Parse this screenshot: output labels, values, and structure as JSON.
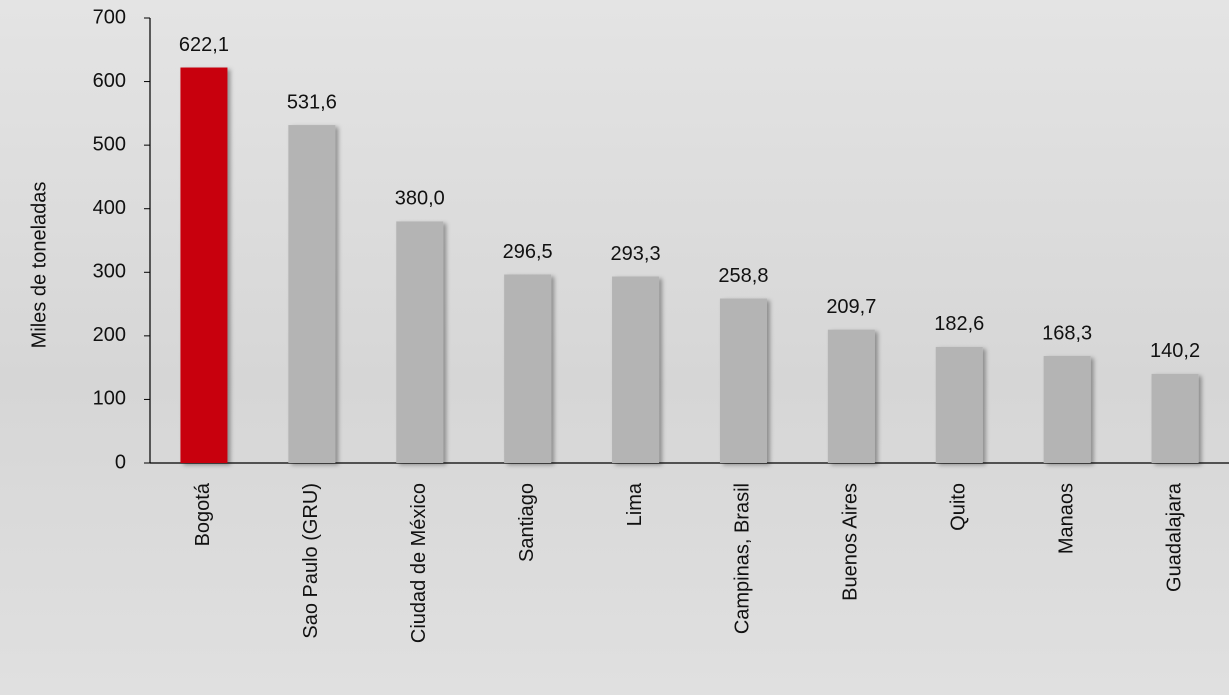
{
  "chart_data": {
    "type": "bar",
    "y_label": "Miles de toneladas",
    "categories": [
      "Bogotá",
      "Sao Paulo (GRU)",
      "Ciudad de México",
      "Santiago",
      "Lima",
      "Campinas, Brasil",
      "Buenos Aires",
      "Quito",
      "Manaos",
      "Guadalajara"
    ],
    "values": [
      622.1,
      531.6,
      380.0,
      296.5,
      293.3,
      258.8,
      209.7,
      182.6,
      168.3,
      140.2
    ],
    "value_labels": [
      "622,1",
      "531,6",
      "380,0",
      "296,5",
      "293,3",
      "258,8",
      "209,7",
      "182,6",
      "168,3",
      "140,2"
    ],
    "colors": [
      "#c8000a",
      "#b4b4b4",
      "#b4b4b4",
      "#b4b4b4",
      "#b4b4b4",
      "#b4b4b4",
      "#b4b4b4",
      "#b4b4b4",
      "#b4b4b4",
      "#b4b4b4"
    ],
    "ylim": [
      0,
      700
    ],
    "yticks": [
      0,
      100,
      200,
      300,
      400,
      500,
      600,
      700
    ],
    "grid": false
  }
}
